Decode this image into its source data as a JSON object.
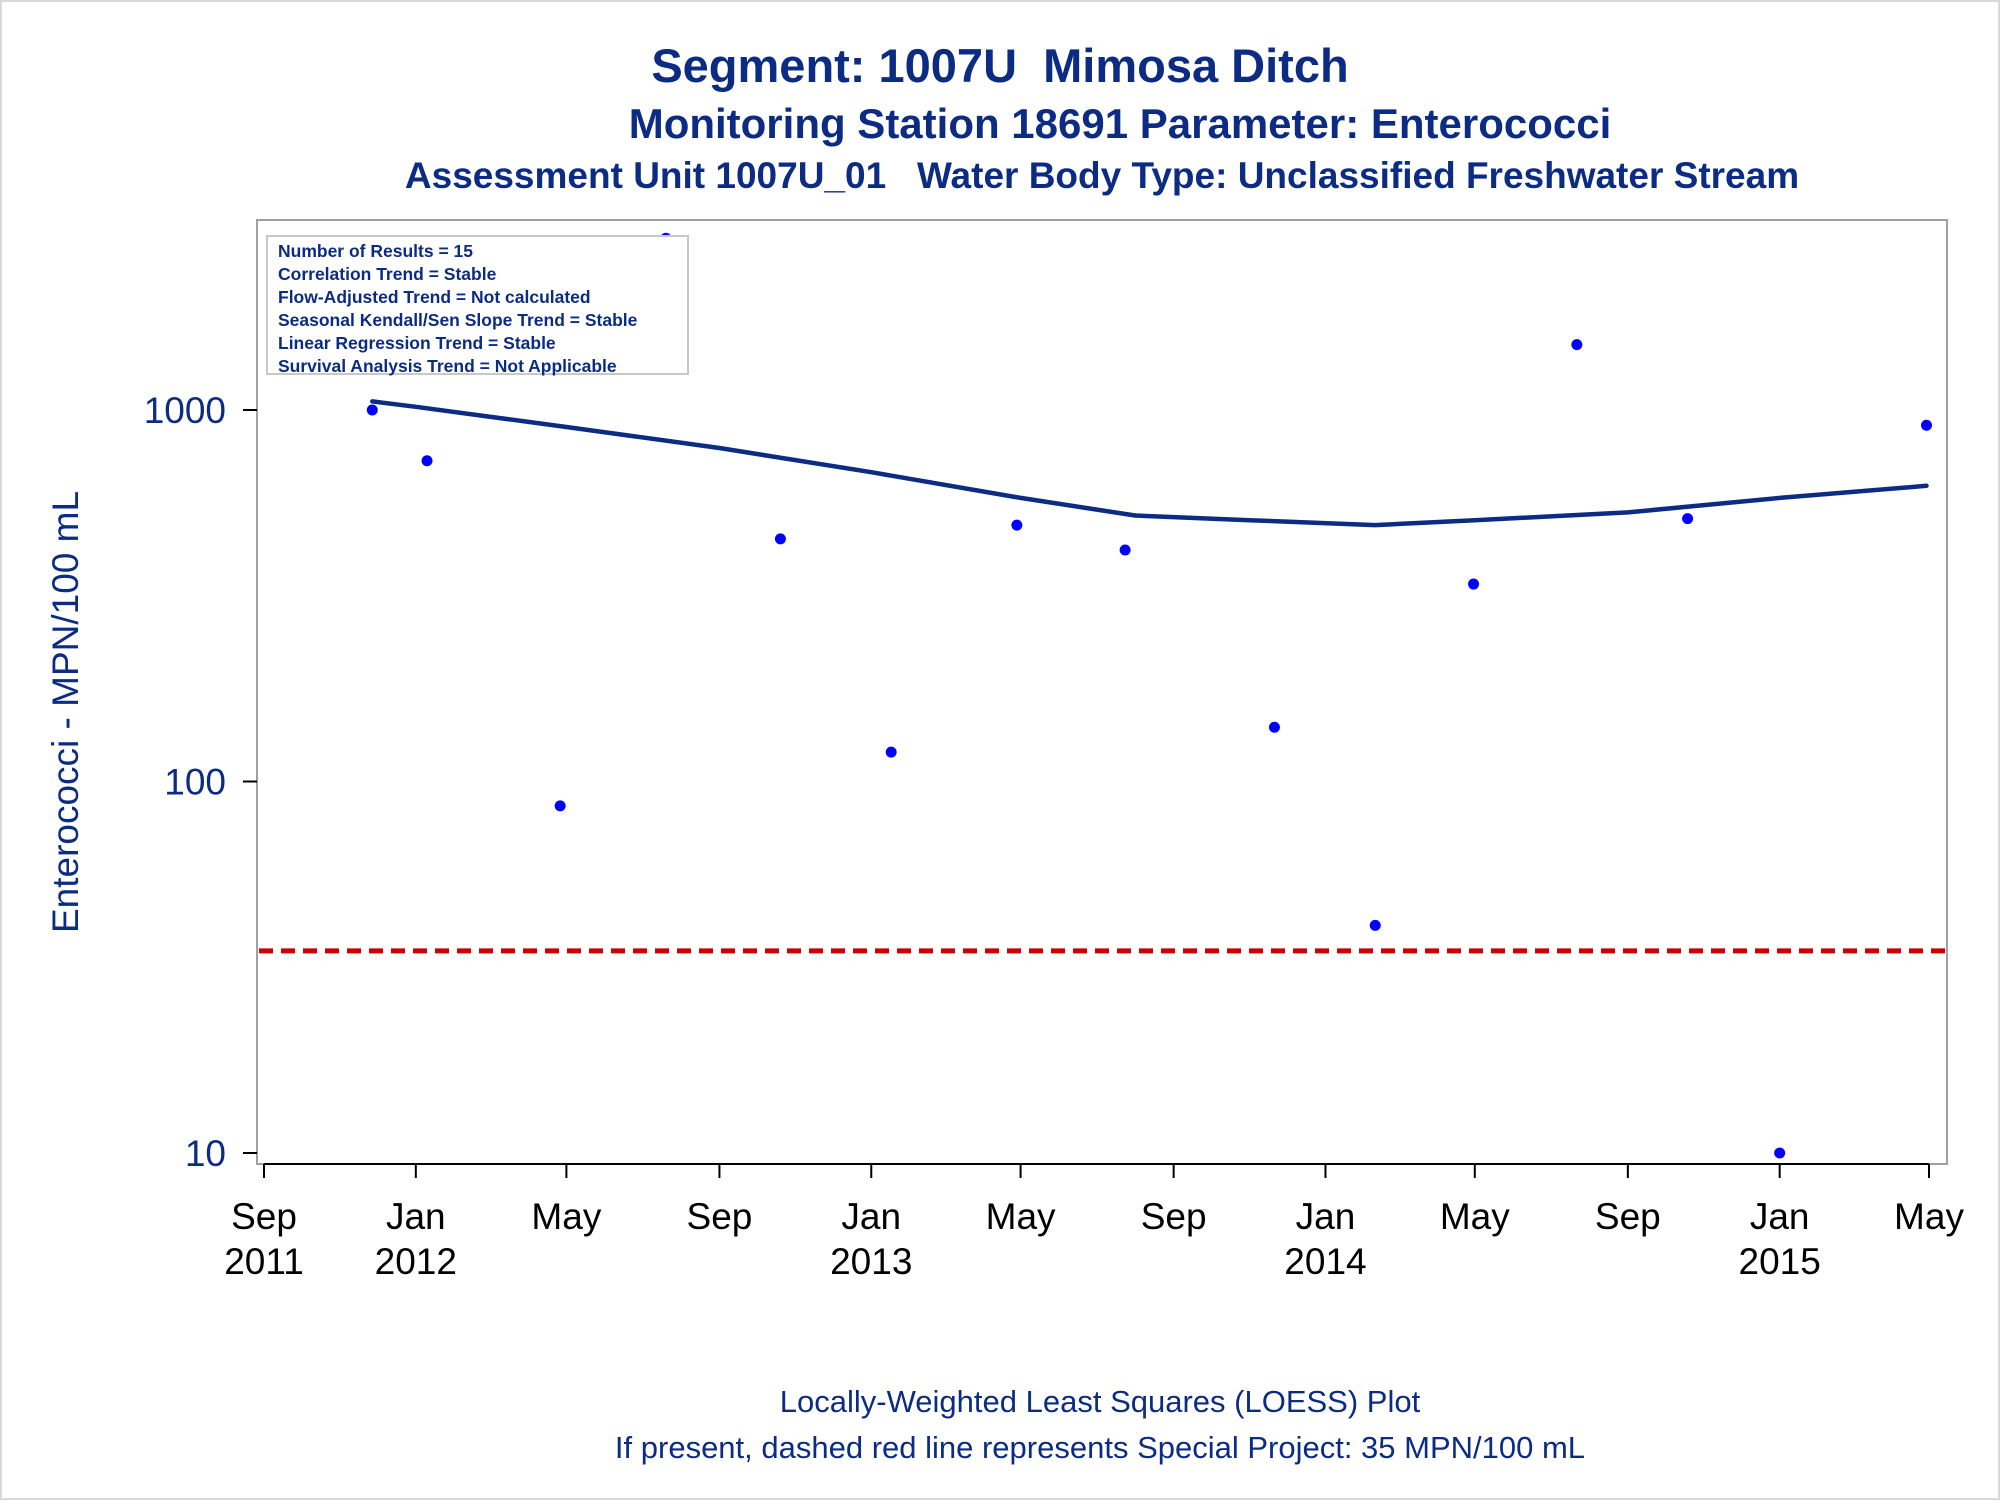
{
  "titles": {
    "line1": "Segment: 1007U  Mimosa Ditch",
    "line2": "Monitoring Station 18691 Parameter: Enterococci",
    "line3": "Assessment Unit 1007U_01   Water Body Type: Unclassified Freshwater Stream"
  },
  "stats_box": [
    "Number of Results = 15",
    "Correlation Trend = Stable",
    "Flow-Adjusted Trend = Not calculated",
    "Seasonal Kendall/Sen Slope Trend = Stable",
    "Linear Regression Trend = Stable",
    "Survival Analysis Trend = Not Applicable"
  ],
  "footnotes": {
    "line1": "Locally-Weighted Least Squares (LOESS) Plot",
    "line2": "If present, dashed red line represents Special Project: 35 MPN/100 mL"
  },
  "colors": {
    "points": "#0000ff",
    "loess": "#0c2c84",
    "reference": "#cc0000",
    "text": "#0c2c84",
    "axis": "#000000"
  },
  "chart_data": {
    "type": "scatter",
    "ylabel": "Enterococci - MPN/100 mL",
    "xlabel": "",
    "y_scale": "log",
    "ylim": [
      10,
      2900
    ],
    "xlim": [
      "2011-09-01",
      "2015-05-01"
    ],
    "y_ticks": [
      10,
      100,
      1000
    ],
    "y_tick_labels": [
      "10",
      "100",
      "1000"
    ],
    "x_ticks": [
      {
        "date": "2011-09-01",
        "label": [
          "Sep",
          "2011"
        ]
      },
      {
        "date": "2012-01-01",
        "label": [
          "Jan",
          "2012"
        ]
      },
      {
        "date": "2012-05-01",
        "label": [
          "May",
          ""
        ]
      },
      {
        "date": "2012-09-01",
        "label": [
          "Sep",
          ""
        ]
      },
      {
        "date": "2013-01-01",
        "label": [
          "Jan",
          "2013"
        ]
      },
      {
        "date": "2013-05-01",
        "label": [
          "May",
          ""
        ]
      },
      {
        "date": "2013-09-01",
        "label": [
          "Sep",
          ""
        ]
      },
      {
        "date": "2014-01-01",
        "label": [
          "Jan",
          "2014"
        ]
      },
      {
        "date": "2014-05-01",
        "label": [
          "May",
          ""
        ]
      },
      {
        "date": "2014-09-01",
        "label": [
          "Sep",
          ""
        ]
      },
      {
        "date": "2015-01-01",
        "label": [
          "Jan",
          "2015"
        ]
      },
      {
        "date": "2015-05-01",
        "label": [
          "May",
          ""
        ]
      }
    ],
    "series": [
      {
        "type": "scatter",
        "points": [
          {
            "x": "2011-11-27",
            "y": 1000
          },
          {
            "x": "2012-01-10",
            "y": 730
          },
          {
            "x": "2012-04-26",
            "y": 86
          },
          {
            "x": "2012-07-20",
            "y": 2900
          },
          {
            "x": "2012-10-20",
            "y": 450
          },
          {
            "x": "2013-01-17",
            "y": 120
          },
          {
            "x": "2013-04-28",
            "y": 490
          },
          {
            "x": "2013-07-24",
            "y": 420
          },
          {
            "x": "2013-11-21",
            "y": 140
          },
          {
            "x": "2014-02-10",
            "y": 41
          },
          {
            "x": "2014-04-30",
            "y": 340
          },
          {
            "x": "2014-07-22",
            "y": 1500
          },
          {
            "x": "2014-10-19",
            "y": 510
          },
          {
            "x": "2015-01-01",
            "y": 10
          },
          {
            "x": "2015-04-29",
            "y": 910
          }
        ]
      },
      {
        "type": "line",
        "points": [
          {
            "x": "2011-11-27",
            "y": 1055
          },
          {
            "x": "2012-01-01",
            "y": 1020
          },
          {
            "x": "2012-05-01",
            "y": 900
          },
          {
            "x": "2012-09-01",
            "y": 790
          },
          {
            "x": "2013-01-01",
            "y": 680
          },
          {
            "x": "2013-05-01",
            "y": 580
          },
          {
            "x": "2013-08-01",
            "y": 520
          },
          {
            "x": "2013-11-01",
            "y": 505
          },
          {
            "x": "2014-02-10",
            "y": 490
          },
          {
            "x": "2014-05-01",
            "y": 505
          },
          {
            "x": "2014-09-01",
            "y": 530
          },
          {
            "x": "2015-01-01",
            "y": 580
          },
          {
            "x": "2015-04-29",
            "y": 625
          }
        ]
      },
      {
        "type": "reference_line",
        "y": 35
      }
    ]
  }
}
